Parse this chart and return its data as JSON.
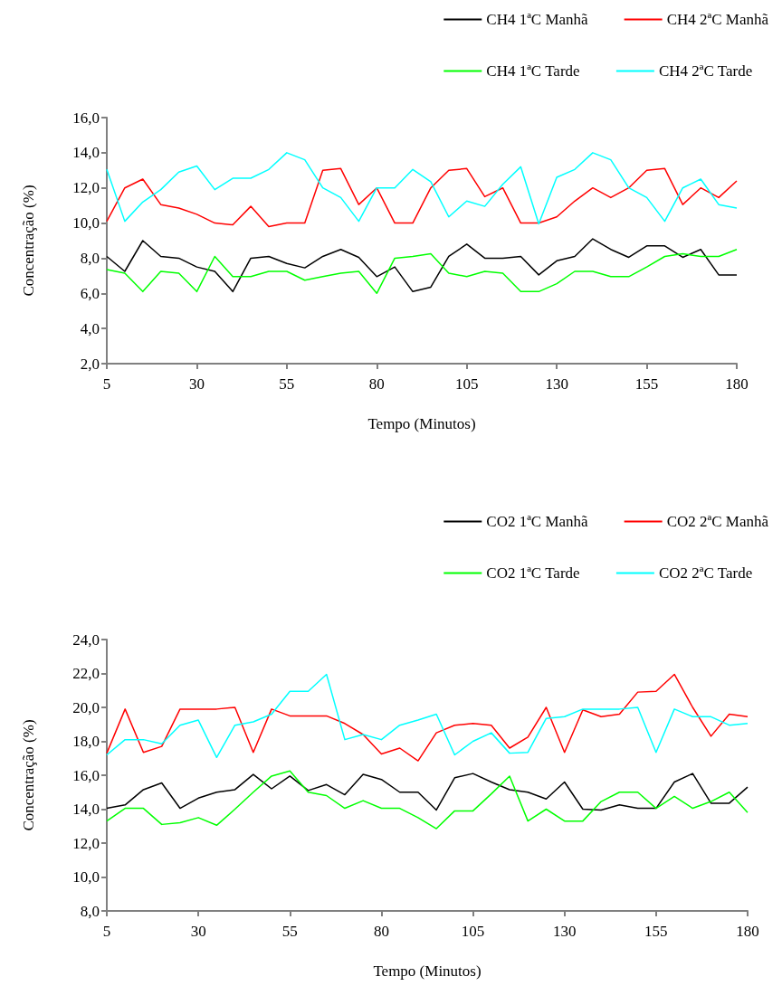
{
  "chart_data": [
    {
      "type": "line",
      "xlabel": "Tempo (Minutos)",
      "ylabel": "Concentração (%)",
      "x": [
        5,
        10,
        15,
        20,
        25,
        30,
        35,
        40,
        45,
        50,
        55,
        60,
        65,
        70,
        75,
        80,
        85,
        90,
        95,
        100,
        105,
        110,
        115,
        120,
        125,
        130,
        135,
        140,
        145,
        150,
        155,
        160,
        165,
        170,
        175,
        180
      ],
      "xlim": [
        5,
        180
      ],
      "xticks": [
        5,
        30,
        55,
        80,
        105,
        130,
        155,
        180
      ],
      "ylim": [
        2,
        16
      ],
      "yticks": [
        {
          "value": 2,
          "label": "2,0"
        },
        {
          "value": 4,
          "label": "4,0"
        },
        {
          "value": 6,
          "label": "6,0"
        },
        {
          "value": 8,
          "label": "8,0"
        },
        {
          "value": 10,
          "label": "10,0"
        },
        {
          "value": 12,
          "label": "12,0"
        },
        {
          "value": 14,
          "label": "14,0"
        },
        {
          "value": 16,
          "label": "16,0"
        }
      ],
      "grid": false,
      "legend": "top right",
      "marker": "none",
      "line_style": "solid",
      "series": [
        {
          "name": "CH4 1ªC Manhã",
          "color": "#000000",
          "values": [
            8.1,
            7.25,
            9.0,
            8.1,
            8.0,
            7.5,
            7.25,
            6.1,
            8.0,
            8.1,
            7.7,
            7.45,
            8.1,
            8.5,
            8.05,
            6.95,
            7.5,
            6.1,
            6.35,
            8.1,
            8.8,
            8.0,
            8.0,
            8.1,
            7.05,
            7.85,
            8.1,
            9.1,
            8.5,
            8.05,
            8.7,
            8.7,
            8.05,
            8.5,
            7.05,
            7.05
          ]
        },
        {
          "name": "CH4 2ªC Manhã",
          "color": "#ff0000",
          "values": [
            10.1,
            12.0,
            12.5,
            11.05,
            10.85,
            10.5,
            10.0,
            9.9,
            10.95,
            9.8,
            10.0,
            10.0,
            13.0,
            13.1,
            11.05,
            12.0,
            10.0,
            10.0,
            12.0,
            13.0,
            13.1,
            11.5,
            12.0,
            10.0,
            10.0,
            10.35,
            11.25,
            12.0,
            11.45,
            12.0,
            13.0,
            13.1,
            11.05,
            12.0,
            11.45,
            12.4
          ]
        },
        {
          "name": "CH4 1ªC Tarde",
          "color": "#00ff00",
          "values": [
            7.35,
            7.15,
            6.1,
            7.25,
            7.15,
            6.1,
            8.1,
            6.95,
            6.95,
            7.25,
            7.25,
            6.75,
            6.95,
            7.15,
            7.25,
            6.0,
            8.0,
            8.1,
            8.25,
            7.15,
            6.95,
            7.25,
            7.15,
            6.1,
            6.1,
            6.55,
            7.25,
            7.25,
            6.95,
            6.95,
            7.5,
            8.1,
            8.25,
            8.1,
            8.1,
            8.5
          ]
        },
        {
          "name": "CH4 2ªC Tarde",
          "color": "#00ffff",
          "values": [
            13.05,
            10.1,
            11.2,
            11.9,
            12.9,
            13.25,
            11.9,
            12.55,
            12.55,
            13.05,
            14.0,
            13.6,
            12.0,
            11.45,
            10.1,
            12.0,
            12.0,
            13.05,
            12.35,
            10.35,
            11.25,
            10.95,
            12.2,
            13.2,
            9.95,
            12.6,
            13.05,
            14.0,
            13.6,
            12.0,
            11.45,
            10.1,
            12.0,
            12.5,
            11.05,
            10.85
          ]
        }
      ]
    },
    {
      "type": "line",
      "xlabel": "Tempo (Minutos)",
      "ylabel": "Concentração (%)",
      "x": [
        5,
        10,
        15,
        20,
        25,
        30,
        35,
        40,
        45,
        50,
        55,
        60,
        65,
        70,
        75,
        80,
        85,
        90,
        95,
        100,
        105,
        110,
        115,
        120,
        125,
        130,
        135,
        140,
        145,
        150,
        155,
        160,
        165,
        170,
        175,
        180
      ],
      "xlim": [
        5,
        180
      ],
      "xticks": [
        5,
        30,
        55,
        80,
        105,
        130,
        155,
        180
      ],
      "ylim": [
        8,
        24
      ],
      "yticks": [
        {
          "value": 8,
          "label": "8,0"
        },
        {
          "value": 10,
          "label": "10,0"
        },
        {
          "value": 12,
          "label": "12,0"
        },
        {
          "value": 14,
          "label": "14,0"
        },
        {
          "value": 16,
          "label": "16,0"
        },
        {
          "value": 18,
          "label": "18,0"
        },
        {
          "value": 20,
          "label": "20,0"
        },
        {
          "value": 22,
          "label": "22,0"
        },
        {
          "value": 24,
          "label": "24,0"
        }
      ],
      "grid": false,
      "legend": "top right",
      "marker": "none",
      "line_style": "solid",
      "series": [
        {
          "name": "CO2 1ªC Manhã",
          "color": "#000000",
          "values": [
            14.05,
            14.25,
            15.15,
            15.55,
            14.05,
            14.65,
            15.0,
            15.15,
            16.05,
            15.2,
            15.95,
            15.1,
            15.45,
            14.85,
            16.05,
            15.75,
            15.0,
            15.0,
            13.95,
            15.85,
            16.1,
            15.6,
            15.15,
            15.0,
            14.6,
            15.6,
            14.0,
            13.95,
            14.25,
            14.05,
            14.05,
            15.6,
            16.1,
            14.35,
            14.35,
            15.3
          ]
        },
        {
          "name": "CO2 2ªC Manhã",
          "color": "#ff0000",
          "values": [
            17.3,
            19.9,
            17.35,
            17.7,
            19.9,
            19.9,
            19.9,
            20.0,
            17.35,
            19.9,
            19.5,
            19.5,
            19.5,
            19.05,
            18.4,
            17.25,
            17.6,
            16.85,
            18.5,
            18.95,
            19.05,
            18.95,
            17.6,
            18.25,
            20.0,
            17.35,
            19.85,
            19.45,
            19.6,
            20.9,
            20.95,
            21.95,
            20.0,
            18.3,
            19.6,
            19.45
          ]
        },
        {
          "name": "CO2 1ªC Tarde",
          "color": "#00ff00",
          "values": [
            13.3,
            14.05,
            14.05,
            13.1,
            13.2,
            13.5,
            13.05,
            14.0,
            15.0,
            15.95,
            16.25,
            15.0,
            14.8,
            14.05,
            14.5,
            14.05,
            14.05,
            13.5,
            12.85,
            13.9,
            13.9,
            14.9,
            15.95,
            13.3,
            14.0,
            13.3,
            13.3,
            14.45,
            15.0,
            15.0,
            14.05,
            14.75,
            14.05,
            14.45,
            15.0,
            13.8
          ]
        },
        {
          "name": "CO2 2ªC Tarde",
          "color": "#00ffff",
          "values": [
            17.2,
            18.1,
            18.1,
            17.85,
            18.95,
            19.25,
            17.05,
            18.95,
            19.15,
            19.6,
            20.95,
            20.95,
            21.95,
            18.1,
            18.4,
            18.1,
            18.95,
            19.25,
            19.6,
            17.2,
            18.0,
            18.5,
            17.3,
            17.35,
            19.35,
            19.45,
            19.9,
            19.9,
            19.9,
            20.0,
            17.35,
            19.9,
            19.45,
            19.45,
            18.95,
            19.05
          ]
        }
      ]
    }
  ]
}
